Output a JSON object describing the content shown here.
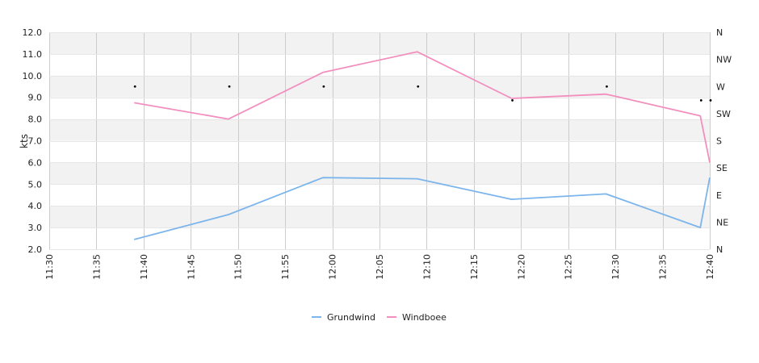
{
  "chart_data": {
    "type": "line",
    "ylabel": "kts",
    "ylim": [
      2.0,
      12.0
    ],
    "y_ticks": [
      "2.0",
      "3.0",
      "4.0",
      "5.0",
      "6.0",
      "7.0",
      "8.0",
      "9.0",
      "10.0",
      "11.0",
      "12.0"
    ],
    "x_range": [
      "11:30",
      "12:40"
    ],
    "x_ticks": [
      "11:30",
      "11:35",
      "11:40",
      "11:45",
      "11:50",
      "11:55",
      "12:00",
      "12:05",
      "12:10",
      "12:15",
      "12:20",
      "12:25",
      "12:30",
      "12:35",
      "12:40"
    ],
    "y2_ticks": [
      "N",
      "NE",
      "E",
      "SE",
      "S",
      "SW",
      "W",
      "NW",
      "N"
    ],
    "y2_range": [
      0,
      360
    ],
    "grid": {
      "horizontal_bands": true,
      "vertical_lines": true
    },
    "legend_position": "bottom-center",
    "x": [
      "11:39",
      "11:49",
      "11:59",
      "12:09",
      "12:19",
      "12:29",
      "12:39",
      "12:40"
    ],
    "series": [
      {
        "name": "Grundwind",
        "color": "#7cb5ec",
        "values": [
          2.45,
          3.6,
          5.3,
          5.25,
          4.3,
          4.55,
          3.0,
          5.3
        ]
      },
      {
        "name": "Windboee",
        "color": "#f28fbe",
        "values": [
          8.75,
          8.0,
          10.15,
          11.1,
          8.95,
          9.15,
          8.15,
          6.0
        ]
      }
    ],
    "direction_markers": {
      "x": [
        "11:39",
        "11:49",
        "11:59",
        "12:09",
        "12:19",
        "12:29",
        "12:39",
        "12:40"
      ],
      "values_deg": [
        270,
        270,
        270,
        270,
        247,
        270,
        247,
        247
      ]
    }
  },
  "colors": {
    "grid_band": "#f2f2f2",
    "grid_line": "#cccccc",
    "axis_text": "#222222",
    "marker": "#000000"
  }
}
